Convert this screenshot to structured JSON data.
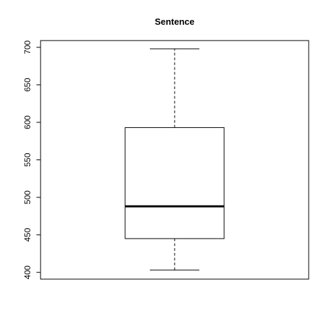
{
  "chart_data": {
    "type": "boxplot",
    "title": "Sentence",
    "xlabel": "",
    "ylabel": "",
    "ylim": [
      391,
      709
    ],
    "yticks": [
      400,
      450,
      500,
      550,
      600,
      650,
      700
    ],
    "whisker_style": "dashed",
    "box": {
      "whisker_low": 403,
      "q1": 445,
      "median": 488,
      "q3": 593,
      "whisker_high": 698
    },
    "colors": {
      "stroke": "#000000",
      "background": "#ffffff"
    }
  }
}
